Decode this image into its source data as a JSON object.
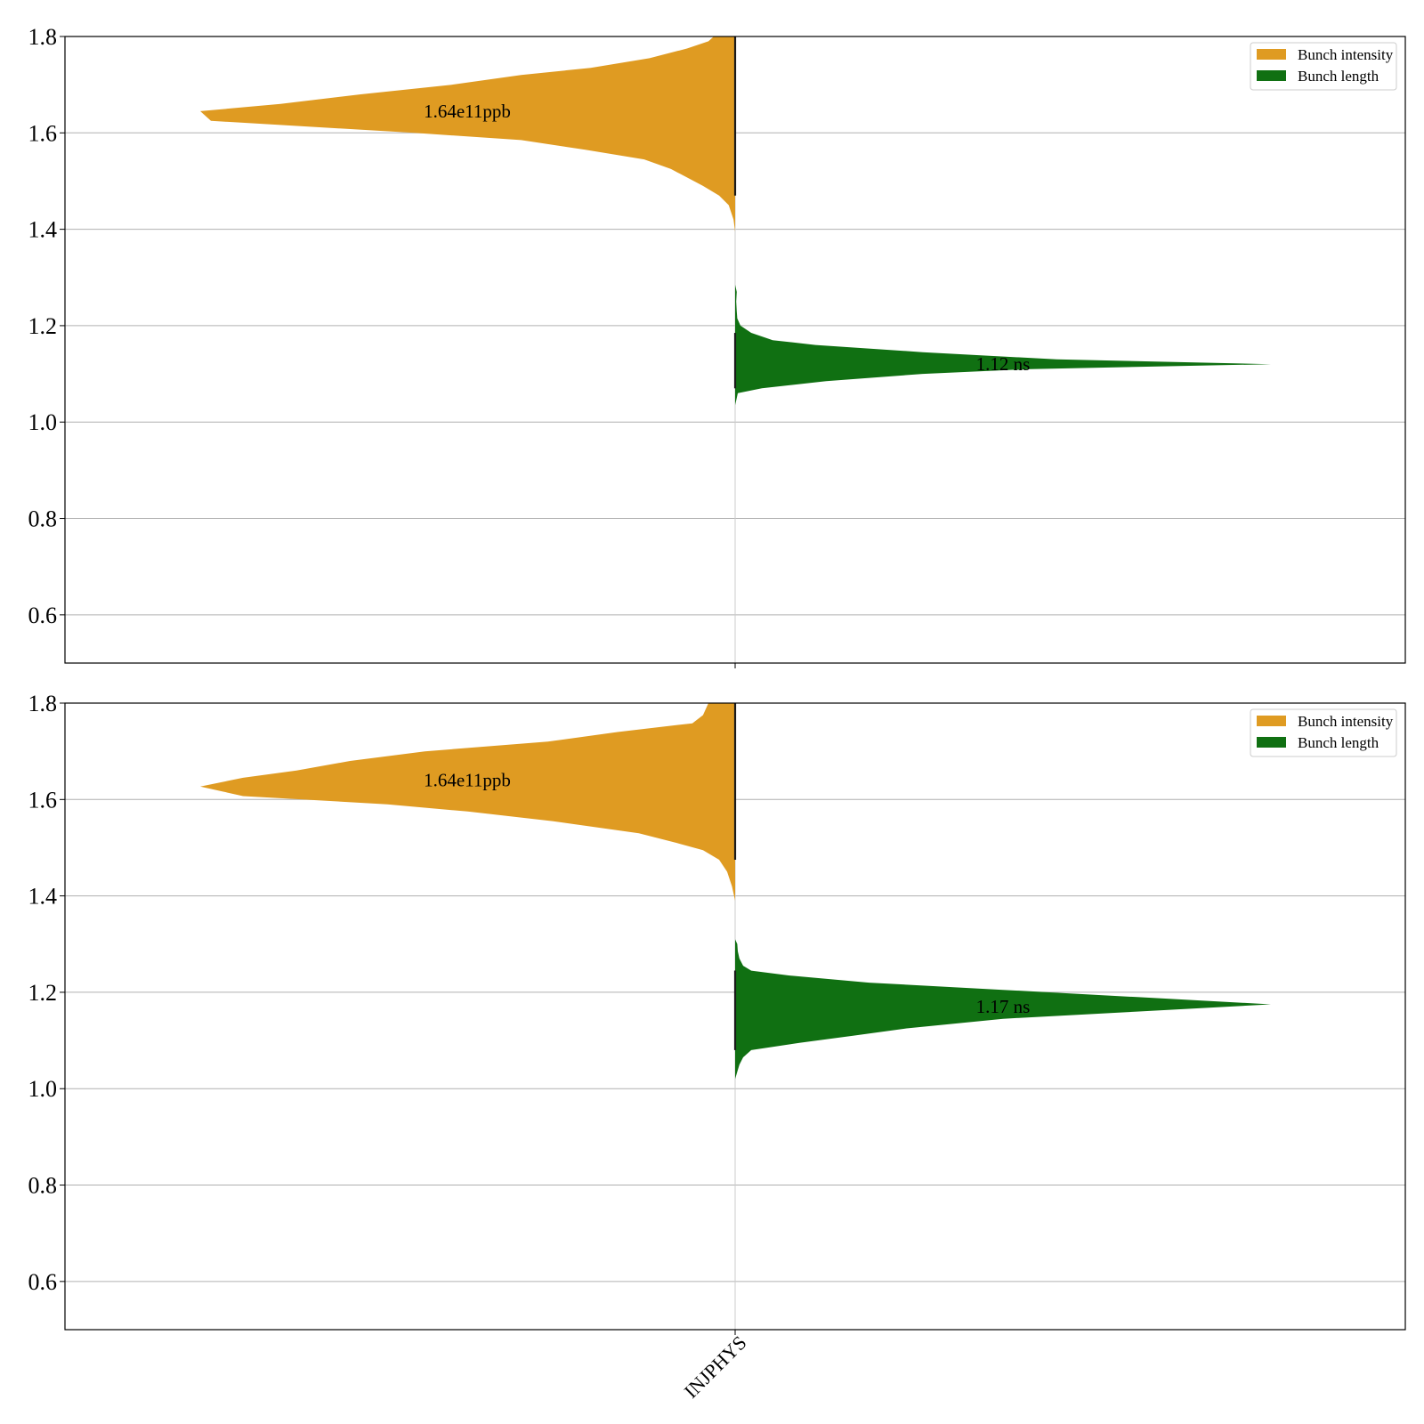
{
  "chart_data": [
    {
      "type": "violin",
      "panel": "top",
      "xlabel": "",
      "ylabel": "",
      "ylim": [
        0.5,
        1.8
      ],
      "yticks": [
        0.6,
        0.8,
        1.0,
        1.2,
        1.4,
        1.6,
        1.8
      ],
      "ytick_labels": [
        "0.6",
        "0.8",
        "1.0",
        "1.2",
        "1.4",
        "1.6",
        "1.8"
      ],
      "grid": true,
      "legend_position": "top-right",
      "legend": [
        {
          "label": "Bunch intensity",
          "color": "#df9b22"
        },
        {
          "label": "Bunch length",
          "color": "#107012"
        }
      ],
      "series": [
        {
          "name": "Bunch intensity",
          "side": "left",
          "color": "#df9b22",
          "annotation": "1.64e11ppb",
          "annotation_y": 1.645,
          "profile": [
            [
              1.395,
              0.0
            ],
            [
              1.42,
              0.003
            ],
            [
              1.45,
              0.012
            ],
            [
              1.47,
              0.03
            ],
            [
              1.49,
              0.06
            ],
            [
              1.525,
              0.12
            ],
            [
              1.545,
              0.17
            ],
            [
              1.565,
              0.28
            ],
            [
              1.585,
              0.4
            ],
            [
              1.6,
              0.6
            ],
            [
              1.625,
              0.98
            ],
            [
              1.645,
              1.0
            ],
            [
              1.66,
              0.85
            ],
            [
              1.68,
              0.7
            ],
            [
              1.7,
              0.53
            ],
            [
              1.72,
              0.4
            ],
            [
              1.735,
              0.27
            ],
            [
              1.755,
              0.16
            ],
            [
              1.775,
              0.09
            ],
            [
              1.79,
              0.05
            ],
            [
              1.8,
              0.04
            ]
          ]
        },
        {
          "name": "Bunch length",
          "side": "right",
          "color": "#107012",
          "annotation": "1.12 ns",
          "annotation_y": 1.12,
          "profile": [
            [
              1.035,
              0.0
            ],
            [
              1.05,
              0.003
            ],
            [
              1.06,
              0.005
            ],
            [
              1.07,
              0.05
            ],
            [
              1.085,
              0.17
            ],
            [
              1.1,
              0.35
            ],
            [
              1.11,
              0.55
            ],
            [
              1.12,
              1.0
            ],
            [
              1.13,
              0.6
            ],
            [
              1.145,
              0.35
            ],
            [
              1.16,
              0.15
            ],
            [
              1.17,
              0.07
            ],
            [
              1.185,
              0.03
            ],
            [
              1.2,
              0.01
            ],
            [
              1.215,
              0.004
            ],
            [
              1.23,
              0.003
            ],
            [
              1.25,
              0.002
            ],
            [
              1.26,
              0.0025
            ],
            [
              1.27,
              0.003
            ],
            [
              1.285,
              0.0
            ]
          ]
        }
      ]
    },
    {
      "type": "violin",
      "panel": "bottom",
      "xlabel": "",
      "ylabel": "",
      "ylim": [
        0.5,
        1.8
      ],
      "yticks": [
        0.6,
        0.8,
        1.0,
        1.2,
        1.4,
        1.6,
        1.8
      ],
      "ytick_labels": [
        "0.6",
        "0.8",
        "1.0",
        "1.2",
        "1.4",
        "1.6",
        "1.8"
      ],
      "categories": [
        "INJPHYS"
      ],
      "grid": true,
      "legend_position": "top-right",
      "legend": [
        {
          "label": "Bunch intensity",
          "color": "#df9b22"
        },
        {
          "label": "Bunch length",
          "color": "#107012"
        }
      ],
      "series": [
        {
          "name": "Bunch intensity",
          "side": "left",
          "color": "#df9b22",
          "annotation": "1.64e11ppb",
          "annotation_y": 1.64,
          "profile": [
            [
              1.39,
              0.0
            ],
            [
              1.42,
              0.006
            ],
            [
              1.45,
              0.015
            ],
            [
              1.475,
              0.03
            ],
            [
              1.495,
              0.06
            ],
            [
              1.51,
              0.11
            ],
            [
              1.53,
              0.18
            ],
            [
              1.555,
              0.34
            ],
            [
              1.575,
              0.5
            ],
            [
              1.59,
              0.65
            ],
            [
              1.607,
              0.92
            ],
            [
              1.627,
              1.0
            ],
            [
              1.645,
              0.92
            ],
            [
              1.66,
              0.82
            ],
            [
              1.68,
              0.72
            ],
            [
              1.7,
              0.58
            ],
            [
              1.72,
              0.35
            ],
            [
              1.74,
              0.22
            ],
            [
              1.758,
              0.08
            ],
            [
              1.775,
              0.06
            ],
            [
              1.8,
              0.05
            ]
          ]
        },
        {
          "name": "Bunch length",
          "side": "right",
          "color": "#107012",
          "annotation": "1.17 ns",
          "annotation_y": 1.17,
          "profile": [
            [
              1.02,
              0.0
            ],
            [
              1.035,
              0.004
            ],
            [
              1.05,
              0.008
            ],
            [
              1.065,
              0.015
            ],
            [
              1.08,
              0.03
            ],
            [
              1.095,
              0.12
            ],
            [
              1.11,
              0.22
            ],
            [
              1.125,
              0.32
            ],
            [
              1.145,
              0.5
            ],
            [
              1.16,
              0.75
            ],
            [
              1.175,
              1.0
            ],
            [
              1.19,
              0.75
            ],
            [
              1.205,
              0.5
            ],
            [
              1.22,
              0.25
            ],
            [
              1.235,
              0.1
            ],
            [
              1.245,
              0.03
            ],
            [
              1.255,
              0.015
            ],
            [
              1.27,
              0.008
            ],
            [
              1.285,
              0.005
            ],
            [
              1.3,
              0.004
            ],
            [
              1.31,
              0.0
            ]
          ]
        }
      ]
    }
  ]
}
